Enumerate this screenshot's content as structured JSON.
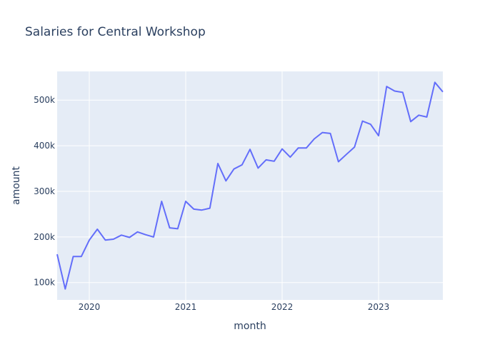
{
  "chart_data": {
    "type": "line",
    "title": "Salaries for Central Workshop",
    "xlabel": "month",
    "ylabel": "amount",
    "x_start": "2019-09",
    "x_end": "2023-09",
    "xlim": [
      "2019-09",
      "2023-09"
    ],
    "ylim": [
      62000,
      563000
    ],
    "x_ticks": [
      {
        "value": "2020-01",
        "label": "2020"
      },
      {
        "value": "2021-01",
        "label": "2021"
      },
      {
        "value": "2022-01",
        "label": "2022"
      },
      {
        "value": "2023-01",
        "label": "2023"
      }
    ],
    "y_ticks": [
      {
        "value": 100000,
        "label": "100k"
      },
      {
        "value": 200000,
        "label": "200k"
      },
      {
        "value": 300000,
        "label": "300k"
      },
      {
        "value": 400000,
        "label": "400k"
      },
      {
        "value": 500000,
        "label": "500k"
      }
    ],
    "grid": true,
    "colors": {
      "background": "#e5ecf6",
      "line": "#636efa",
      "grid": "#ffffff",
      "text": "#2a3f5f"
    },
    "series": [
      {
        "x": [
          "2019-09",
          "2019-10",
          "2019-11",
          "2019-12",
          "2020-01",
          "2020-02",
          "2020-03",
          "2020-04",
          "2020-05",
          "2020-06",
          "2020-07",
          "2020-08",
          "2020-09",
          "2020-10",
          "2020-11",
          "2020-12",
          "2021-01",
          "2021-02",
          "2021-03",
          "2021-04",
          "2021-05",
          "2021-06",
          "2021-07",
          "2021-08",
          "2021-09",
          "2021-10",
          "2021-11",
          "2021-12",
          "2022-01",
          "2022-02",
          "2022-03",
          "2022-04",
          "2022-05",
          "2022-06",
          "2022-07",
          "2022-08",
          "2022-09",
          "2022-10",
          "2022-11",
          "2022-12",
          "2023-01",
          "2023-02",
          "2023-03",
          "2023-04",
          "2023-05",
          "2023-06",
          "2023-07",
          "2023-08",
          "2023-09"
        ],
        "values": [
          162000,
          86000,
          157000,
          157000,
          193000,
          217000,
          193000,
          195000,
          204000,
          199000,
          211000,
          205000,
          200000,
          278000,
          220000,
          218000,
          278000,
          261000,
          259000,
          263000,
          361000,
          323000,
          349000,
          358000,
          392000,
          351000,
          369000,
          366000,
          393000,
          375000,
          395000,
          395000,
          415000,
          429000,
          427000,
          365000,
          381000,
          397000,
          454000,
          447000,
          422000,
          530000,
          520000,
          517000,
          453000,
          467000,
          463000,
          539000,
          518000
        ]
      }
    ]
  }
}
